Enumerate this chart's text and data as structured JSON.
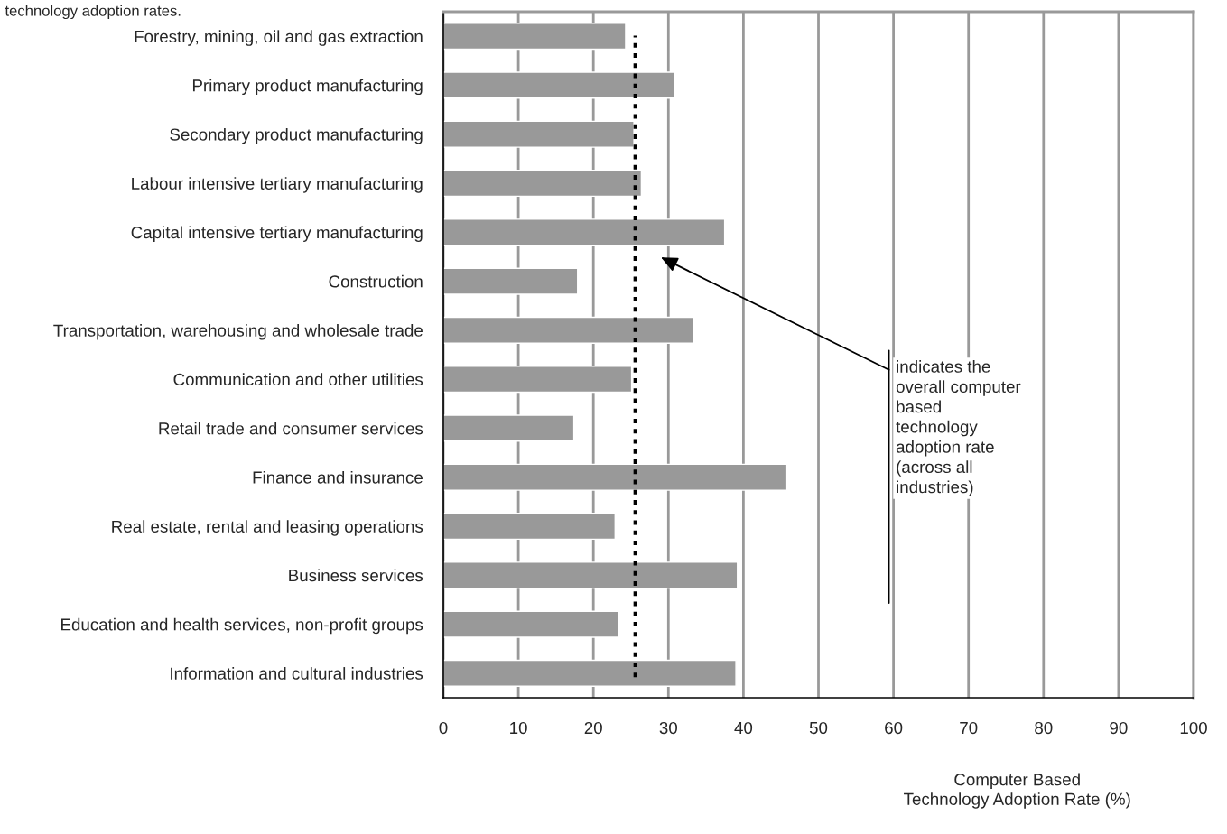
{
  "chart_data": {
    "type": "bar",
    "orientation": "horizontal",
    "title": "technology adoption rates.",
    "categories": [
      "Forestry, mining, oil and gas extraction",
      "Primary product manufacturing",
      "Secondary product manufacturing",
      "Labour intensive tertiary manufacturing",
      "Capital intensive tertiary manufacturing",
      "Construction",
      "Transportation, warehousing and wholesale trade",
      "Communication and other utilities",
      "Retail trade and consumer services",
      "Finance and insurance",
      "Real estate, rental and leasing operations",
      "Business services",
      "Education and health services, non-profit groups",
      "Information and cultural industries"
    ],
    "values": [
      24.3,
      30.8,
      25.4,
      26.4,
      37.5,
      17.9,
      33.3,
      25.1,
      17.4,
      45.8,
      22.9,
      39.2,
      23.4,
      39.0
    ],
    "color": "#999999",
    "xlabel": "Computer Based\nTechnology Adoption Rate (%)",
    "xlim": [
      0,
      100
    ],
    "xticks": [
      0,
      10,
      20,
      30,
      40,
      50,
      60,
      70,
      80,
      90,
      100
    ],
    "grid": "x",
    "ref_lines": [
      {
        "axis": "x",
        "value": 25.6,
        "label": "indicates the\noverall computer\nbased\ntechnology\nadoption rate\n(across all\nindustries)",
        "color": "#000000",
        "line_style": "dotted"
      }
    ]
  }
}
